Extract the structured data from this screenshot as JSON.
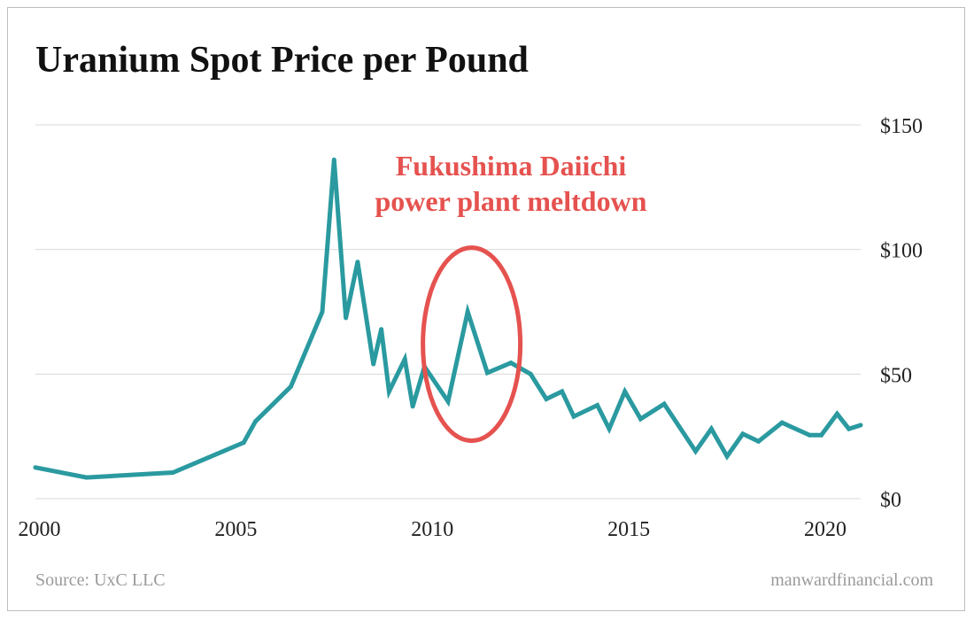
{
  "colors": {
    "line": "#2a9aa0",
    "annotation": "#e5524f",
    "grid": "#d9d9d9",
    "text": "#222222",
    "muted": "#9a9a9a"
  },
  "footer": {
    "source": "Source: UxC LLC",
    "credit": "manwardfinancial.com"
  },
  "chart_data": {
    "type": "line",
    "title": "Uranium Spot Price per Pound",
    "xlabel": "",
    "ylabel": "",
    "xlim": [
      1999.9,
      2020.9
    ],
    "ylim": [
      0,
      150
    ],
    "x_ticks": [
      2000,
      2005,
      2010,
      2015,
      2020
    ],
    "x_tick_labels": [
      "2000",
      "2005",
      "2010",
      "2015",
      "2020"
    ],
    "y_ticks": [
      0,
      50,
      100,
      150
    ],
    "y_tick_labels": [
      "$0",
      "$50",
      "$100",
      "$150"
    ],
    "y_axis_position": "right",
    "grid": true,
    "legend": "none",
    "series": [
      {
        "x": [
          1999.9,
          2001.2,
          2003.4,
          2005.2,
          2005.5,
          2006.4,
          2007.2,
          2007.5,
          2007.8,
          2008.1,
          2008.5,
          2008.7,
          2008.9,
          2009.3,
          2009.5,
          2009.8,
          2010.4,
          2010.9,
          2011.4,
          2012.0,
          2012.5,
          2012.9,
          2013.3,
          2013.6,
          2014.2,
          2014.5,
          2014.9,
          2015.3,
          2015.9,
          2016.7,
          2017.1,
          2017.5,
          2017.9,
          2018.3,
          2018.9,
          2019.6,
          2019.9,
          2020.3,
          2020.6,
          2020.9
        ],
        "values": [
          12.5,
          8.5,
          10.5,
          22.5,
          31,
          45,
          75,
          136,
          72.5,
          95,
          54,
          68,
          43,
          56,
          37,
          53,
          39,
          75,
          50.5,
          54.5,
          50,
          40,
          43,
          33,
          37.5,
          28,
          43,
          32,
          38,
          19,
          28,
          17,
          26,
          23,
          30.5,
          25.5,
          25.5,
          34,
          28,
          29.5
        ]
      }
    ],
    "annotations": [
      {
        "lines": [
          "Fukushima Daiichi",
          "power plant meltdown"
        ],
        "circled_x": 2011.0,
        "circled_y": 62
      }
    ]
  }
}
